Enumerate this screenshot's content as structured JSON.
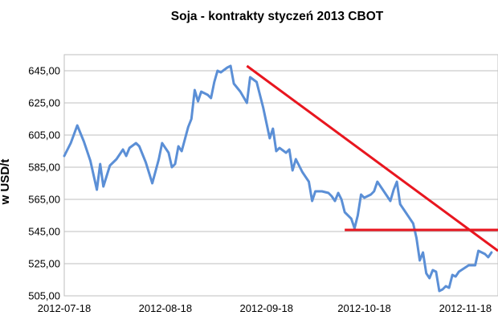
{
  "chart_data": {
    "type": "line",
    "title": "Soja - kontrakty styczeń 2013 CBOT",
    "ylabel": "w USD/t",
    "xlabel": "",
    "x_ticks": [
      "2012-07-18",
      "2012-08-18",
      "2012-09-18",
      "2012-10-18",
      "2012-11-18"
    ],
    "y_ticks": [
      "645,00",
      "625,00",
      "605,00",
      "585,00",
      "565,00",
      "545,00",
      "525,00",
      "505,00"
    ],
    "ylim": [
      505,
      655
    ],
    "xlim": [
      "2012-07-18",
      "2012-11-28"
    ],
    "grid": "horizontal",
    "legend": "none",
    "colors": {
      "series": "#5b8fd6",
      "trendlines": "#e8161f",
      "grid": "#bfbfbf"
    },
    "series": [
      {
        "color": "#5b8fd6",
        "points": [
          [
            "2012-07-18",
            592
          ],
          [
            "2012-07-20",
            600
          ],
          [
            "2012-07-22",
            611
          ],
          [
            "2012-07-24",
            601
          ],
          [
            "2012-07-26",
            589
          ],
          [
            "2012-07-28",
            571
          ],
          [
            "2012-07-29",
            587
          ],
          [
            "2012-07-30",
            573
          ],
          [
            "2012-08-01",
            586
          ],
          [
            "2012-08-03",
            590
          ],
          [
            "2012-08-05",
            596
          ],
          [
            "2012-08-06",
            592
          ],
          [
            "2012-08-07",
            597
          ],
          [
            "2012-08-09",
            600
          ],
          [
            "2012-08-10",
            598
          ],
          [
            "2012-08-12",
            588
          ],
          [
            "2012-08-14",
            575
          ],
          [
            "2012-08-16",
            590
          ],
          [
            "2012-08-17",
            600
          ],
          [
            "2012-08-19",
            594
          ],
          [
            "2012-08-20",
            585
          ],
          [
            "2012-08-21",
            587
          ],
          [
            "2012-08-22",
            598
          ],
          [
            "2012-08-23",
            595
          ],
          [
            "2012-08-25",
            610
          ],
          [
            "2012-08-26",
            615
          ],
          [
            "2012-08-27",
            633
          ],
          [
            "2012-08-28",
            626
          ],
          [
            "2012-08-29",
            632
          ],
          [
            "2012-08-31",
            630
          ],
          [
            "2012-09-01",
            628
          ],
          [
            "2012-09-02",
            638
          ],
          [
            "2012-09-03",
            645
          ],
          [
            "2012-09-04",
            644
          ],
          [
            "2012-09-06",
            647
          ],
          [
            "2012-09-07",
            648
          ],
          [
            "2012-09-08",
            637
          ],
          [
            "2012-09-10",
            632
          ],
          [
            "2012-09-12",
            625
          ],
          [
            "2012-09-13",
            641
          ],
          [
            "2012-09-15",
            638
          ],
          [
            "2012-09-17",
            622
          ],
          [
            "2012-09-19",
            603
          ],
          [
            "2012-09-20",
            609
          ],
          [
            "2012-09-21",
            595
          ],
          [
            "2012-09-22",
            597
          ],
          [
            "2012-09-24",
            594
          ],
          [
            "2012-09-25",
            596
          ],
          [
            "2012-09-26",
            583
          ],
          [
            "2012-09-27",
            590
          ],
          [
            "2012-09-29",
            582
          ],
          [
            "2012-10-01",
            576
          ],
          [
            "2012-10-02",
            564
          ],
          [
            "2012-10-03",
            570
          ],
          [
            "2012-10-05",
            570
          ],
          [
            "2012-10-07",
            569
          ],
          [
            "2012-10-08",
            567
          ],
          [
            "2012-10-09",
            564
          ],
          [
            "2012-10-10",
            569
          ],
          [
            "2012-10-11",
            565
          ],
          [
            "2012-10-12",
            557
          ],
          [
            "2012-10-14",
            553
          ],
          [
            "2012-10-15",
            547
          ],
          [
            "2012-10-16",
            555
          ],
          [
            "2012-10-17",
            568
          ],
          [
            "2012-10-18",
            566
          ],
          [
            "2012-10-20",
            568
          ],
          [
            "2012-10-21",
            570
          ],
          [
            "2012-10-22",
            576
          ],
          [
            "2012-10-24",
            570
          ],
          [
            "2012-10-26",
            564
          ],
          [
            "2012-10-27",
            571
          ],
          [
            "2012-10-28",
            576
          ],
          [
            "2012-10-29",
            562
          ],
          [
            "2012-10-31",
            556
          ],
          [
            "2012-11-02",
            550
          ],
          [
            "2012-11-03",
            541
          ],
          [
            "2012-11-04",
            527
          ],
          [
            "2012-11-05",
            532
          ],
          [
            "2012-11-06",
            519
          ],
          [
            "2012-11-07",
            516
          ],
          [
            "2012-11-08",
            521
          ],
          [
            "2012-11-09",
            520
          ],
          [
            "2012-11-10",
            508
          ],
          [
            "2012-11-11",
            509
          ],
          [
            "2012-11-12",
            511
          ],
          [
            "2012-11-13",
            510
          ],
          [
            "2012-11-14",
            518
          ],
          [
            "2012-11-15",
            517
          ],
          [
            "2012-11-16",
            520
          ],
          [
            "2012-11-19",
            524
          ],
          [
            "2012-11-21",
            524
          ],
          [
            "2012-11-22",
            533
          ],
          [
            "2012-11-24",
            531
          ],
          [
            "2012-11-25",
            529
          ],
          [
            "2012-11-26",
            532
          ]
        ]
      }
    ],
    "trendlines": [
      {
        "from": [
          "2012-09-12",
          648
        ],
        "to": [
          "2012-11-28",
          533
        ]
      },
      {
        "from": [
          "2012-10-12",
          546
        ],
        "to": [
          "2012-11-28",
          546
        ]
      }
    ]
  }
}
